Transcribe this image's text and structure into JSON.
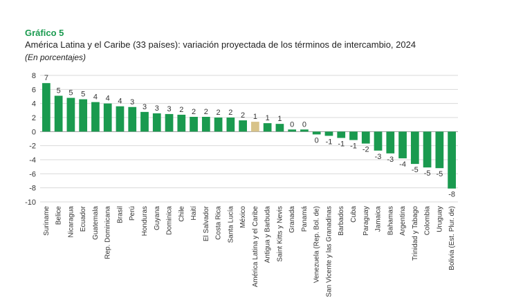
{
  "chart_data": {
    "type": "bar",
    "title": "Gráfico 5",
    "subtitle": "América Latina y el Caribe (33 países): variación proyectada de los términos de intercambio, 2024",
    "unit_note": "(En porcentajes)",
    "ylim": [
      -10,
      8
    ],
    "yticks": [
      "8",
      "6",
      "4",
      "2",
      "0",
      "-2",
      "-4",
      "-6",
      "-8",
      "-10"
    ],
    "grid": true,
    "colors": {
      "bar": "#1a9a4f",
      "highlight": "#d8c38a",
      "grid": "#d9d9d9"
    },
    "categories": [
      "Suriname",
      "Belice",
      "Nicaragua",
      "Ecuador",
      "Guatemala",
      "Rep. Dominicana",
      "Brasil",
      "Perú",
      "Honduras",
      "Guyana",
      "Dominica",
      "Chile",
      "Haití",
      "El Salvador",
      "Costa Rica",
      "Santa Lucía",
      "México",
      "América Latina y el Caribe",
      "Antigua y Barbuda",
      "Saint Kitts y Nevis",
      "Granada",
      "Panamá",
      "Venezuela (Rep. Bol. de)",
      "San Vicente y las Granadinas",
      "Barbados",
      "Cuba",
      "Paraguay",
      "Jamaica",
      "Bahamas",
      "Argentina",
      "Trinidad y Tabago",
      "Colombia",
      "Uruguay",
      "Bolivia (Est. Plur. de)"
    ],
    "values": [
      6.9,
      5.1,
      4.8,
      4.6,
      4.2,
      4.0,
      3.6,
      3.5,
      2.8,
      2.6,
      2.5,
      2.4,
      2.1,
      2.1,
      2.0,
      2.0,
      1.6,
      1.4,
      1.2,
      1.1,
      0.3,
      0.3,
      -0.4,
      -0.6,
      -0.9,
      -1.2,
      -1.7,
      -2.7,
      -3.1,
      -3.8,
      -4.6,
      -5.1,
      -5.2,
      -8.1
    ],
    "labels": [
      "7",
      "5",
      "5",
      "5",
      "4",
      "4",
      "4",
      "3",
      "3",
      "3",
      "3",
      "2",
      "2",
      "2",
      "2",
      "2",
      "2",
      "1",
      "1",
      "1",
      "0",
      "0",
      "0",
      "-1",
      "-1",
      "-1",
      "-2",
      "-3",
      "-3",
      "-4",
      "-5",
      "-5",
      "-5",
      "-8"
    ],
    "highlight_category": "América Latina y el Caribe"
  }
}
